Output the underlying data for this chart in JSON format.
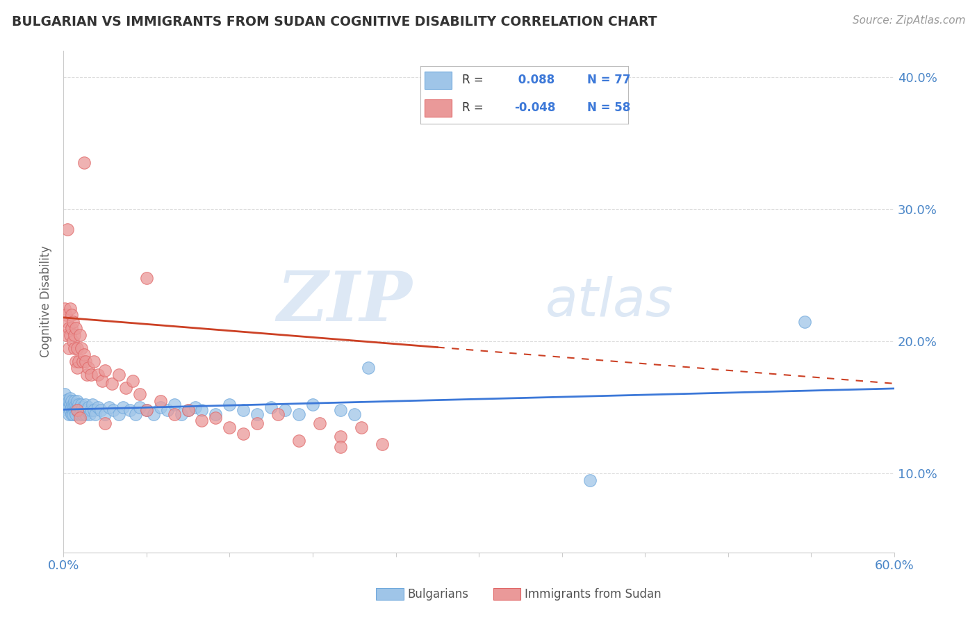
{
  "title": "BULGARIAN VS IMMIGRANTS FROM SUDAN COGNITIVE DISABILITY CORRELATION CHART",
  "source": "Source: ZipAtlas.com",
  "ylabel": "Cognitive Disability",
  "xlim": [
    0.0,
    0.6
  ],
  "ylim": [
    0.04,
    0.42
  ],
  "ytick_positions": [
    0.1,
    0.2,
    0.3,
    0.4
  ],
  "ytick_labels": [
    "10.0%",
    "20.0%",
    "30.0%",
    "40.0%"
  ],
  "xtick_positions": [
    0.0,
    0.06,
    0.12,
    0.18,
    0.24,
    0.3,
    0.36,
    0.42,
    0.48,
    0.54,
    0.6
  ],
  "blue_R": 0.088,
  "blue_N": 77,
  "pink_R": -0.048,
  "pink_N": 58,
  "blue_color": "#9fc5e8",
  "pink_color": "#ea9999",
  "blue_edge_color": "#6fa8dc",
  "pink_edge_color": "#e06666",
  "blue_line_color": "#3c78d8",
  "pink_line_color": "#cc4125",
  "watermark_text": "ZIPatlas",
  "legend_label_blue": "Bulgarians",
  "legend_label_pink": "Immigrants from Sudan",
  "blue_x": [
    0.001,
    0.002,
    0.002,
    0.003,
    0.003,
    0.003,
    0.004,
    0.004,
    0.004,
    0.005,
    0.005,
    0.005,
    0.006,
    0.006,
    0.006,
    0.007,
    0.007,
    0.007,
    0.008,
    0.008,
    0.008,
    0.009,
    0.009,
    0.009,
    0.01,
    0.01,
    0.01,
    0.011,
    0.011,
    0.012,
    0.012,
    0.013,
    0.013,
    0.014,
    0.014,
    0.015,
    0.016,
    0.016,
    0.017,
    0.018,
    0.019,
    0.02,
    0.021,
    0.022,
    0.023,
    0.025,
    0.027,
    0.03,
    0.033,
    0.036,
    0.04,
    0.043,
    0.048,
    0.052,
    0.055,
    0.06,
    0.065,
    0.07,
    0.075,
    0.08,
    0.085,
    0.09,
    0.095,
    0.1,
    0.11,
    0.12,
    0.13,
    0.14,
    0.15,
    0.16,
    0.17,
    0.18,
    0.2,
    0.21,
    0.22,
    0.535,
    0.38
  ],
  "blue_y": [
    0.16,
    0.155,
    0.152,
    0.148,
    0.151,
    0.156,
    0.145,
    0.15,
    0.155,
    0.148,
    0.153,
    0.157,
    0.145,
    0.15,
    0.155,
    0.148,
    0.152,
    0.145,
    0.148,
    0.152,
    0.155,
    0.148,
    0.152,
    0.145,
    0.148,
    0.152,
    0.155,
    0.148,
    0.152,
    0.145,
    0.15,
    0.148,
    0.152,
    0.145,
    0.15,
    0.148,
    0.145,
    0.152,
    0.148,
    0.15,
    0.145,
    0.148,
    0.152,
    0.148,
    0.145,
    0.15,
    0.148,
    0.145,
    0.15,
    0.148,
    0.145,
    0.15,
    0.148,
    0.145,
    0.15,
    0.148,
    0.145,
    0.15,
    0.148,
    0.152,
    0.145,
    0.148,
    0.15,
    0.148,
    0.145,
    0.152,
    0.148,
    0.145,
    0.15,
    0.148,
    0.145,
    0.152,
    0.148,
    0.145,
    0.18,
    0.215,
    0.095
  ],
  "pink_x": [
    0.001,
    0.002,
    0.002,
    0.003,
    0.003,
    0.004,
    0.004,
    0.005,
    0.005,
    0.006,
    0.006,
    0.007,
    0.007,
    0.008,
    0.008,
    0.009,
    0.009,
    0.01,
    0.01,
    0.011,
    0.012,
    0.013,
    0.014,
    0.015,
    0.016,
    0.017,
    0.018,
    0.02,
    0.022,
    0.025,
    0.028,
    0.03,
    0.035,
    0.04,
    0.045,
    0.05,
    0.055,
    0.06,
    0.07,
    0.08,
    0.09,
    0.1,
    0.11,
    0.12,
    0.13,
    0.14,
    0.155,
    0.17,
    0.185,
    0.2,
    0.215,
    0.23,
    0.06,
    0.2,
    0.015,
    0.03,
    0.01,
    0.012
  ],
  "pink_y": [
    0.225,
    0.205,
    0.22,
    0.285,
    0.215,
    0.195,
    0.21,
    0.225,
    0.205,
    0.22,
    0.21,
    0.2,
    0.215,
    0.205,
    0.195,
    0.185,
    0.21,
    0.195,
    0.18,
    0.185,
    0.205,
    0.195,
    0.185,
    0.19,
    0.185,
    0.175,
    0.18,
    0.175,
    0.185,
    0.175,
    0.17,
    0.178,
    0.168,
    0.175,
    0.165,
    0.17,
    0.16,
    0.148,
    0.155,
    0.145,
    0.148,
    0.14,
    0.142,
    0.135,
    0.13,
    0.138,
    0.145,
    0.125,
    0.138,
    0.128,
    0.135,
    0.122,
    0.248,
    0.12,
    0.335,
    0.138,
    0.148,
    0.142
  ],
  "background_color": "#ffffff",
  "grid_color": "#dddddd"
}
